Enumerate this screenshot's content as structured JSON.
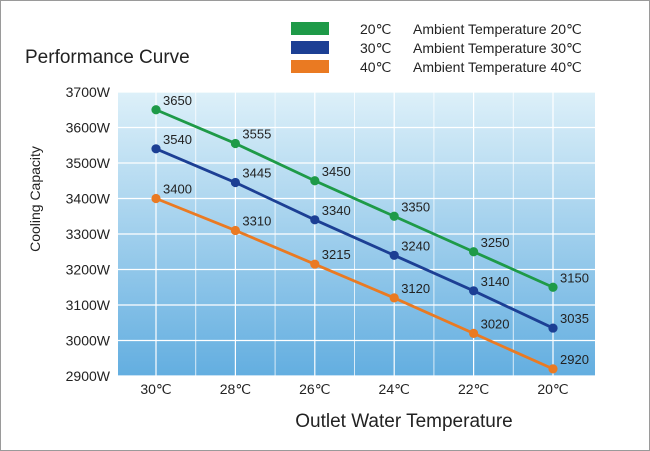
{
  "chart_data": {
    "type": "line",
    "title": "Performance Curve",
    "xlabel": "Outlet Water Temperature",
    "ylabel": "Cooling Capacity",
    "categories": [
      "30℃",
      "28℃",
      "26℃",
      "24℃",
      "22℃",
      "20℃"
    ],
    "y_ticks": [
      "3700W",
      "3600W",
      "3500W",
      "3400W",
      "3300W",
      "3200W",
      "3100W",
      "3000W",
      "2900W"
    ],
    "ylim": [
      2900,
      3700
    ],
    "grid": true,
    "legend_position": "top-right",
    "series": [
      {
        "name": "Ambient Temperature 20℃",
        "code": "20℃",
        "color": "#1e9a48",
        "values": [
          3650,
          3555,
          3450,
          3350,
          3250,
          3150
        ]
      },
      {
        "name": "Ambient Temperature 30℃",
        "code": "30℃",
        "color": "#1c3f94",
        "values": [
          3540,
          3445,
          3340,
          3240,
          3140,
          3035
        ]
      },
      {
        "name": "Ambient Temperature 40℃",
        "code": "40℃",
        "color": "#ea7a22",
        "values": [
          3400,
          3310,
          3215,
          3120,
          3020,
          2920
        ]
      }
    ]
  }
}
